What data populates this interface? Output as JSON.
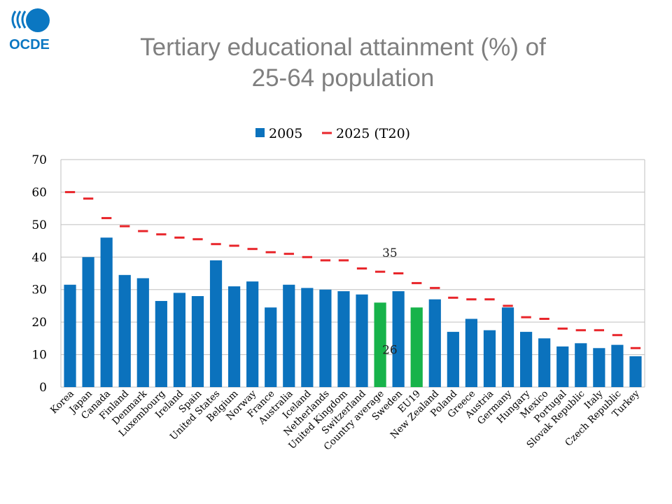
{
  "logo": {
    "text": "OCDE",
    "icon": "oecd-logo-icon",
    "color": "#0b77c2"
  },
  "title": {
    "line1": "Tertiary educational attainment (%) of",
    "line2": "25-64 population"
  },
  "chart_data": {
    "type": "bar",
    "title": "",
    "xlabel": "",
    "ylabel": "",
    "ylim": [
      0,
      70
    ],
    "yticks": [
      0,
      10,
      20,
      30,
      40,
      50,
      60,
      70
    ],
    "grid": true,
    "legend_position": "top",
    "categories": [
      "Korea",
      "Japan",
      "Canada",
      "Finland",
      "Denmark",
      "Luxembourg",
      "Ireland",
      "Spain",
      "United States",
      "Belgium",
      "Norway",
      "France",
      "Australia",
      "Iceland",
      "Netherlands",
      "United Kingdom",
      "Switzerland",
      "Country average",
      "Sweden",
      "EU19",
      "New Zealand",
      "Poland",
      "Greece",
      "Austria",
      "Germany",
      "Hungary",
      "Mexico",
      "Portugal",
      "Slovak Republic",
      "Italy",
      "Czech Republic",
      "Turkey"
    ],
    "series": [
      {
        "name": "2005",
        "mark": "bar",
        "color": "#0b72bd",
        "values": [
          31.5,
          40,
          46,
          34.5,
          33.5,
          26.5,
          29,
          28,
          39,
          31,
          32.5,
          24.5,
          31.5,
          30.5,
          30,
          29.5,
          28.5,
          26,
          29.5,
          24.5,
          27,
          17,
          21,
          17.5,
          24.5,
          17,
          15,
          12.5,
          13.5,
          12,
          13,
          9.5
        ]
      },
      {
        "name": "2025 (T20)",
        "mark": "dash",
        "color": "#e8262b",
        "values": [
          60,
          58,
          52,
          49.5,
          48,
          47,
          46,
          45.5,
          44,
          43.5,
          42.5,
          41.5,
          41,
          40,
          39,
          39,
          36.5,
          35.5,
          35,
          32,
          30.5,
          27.5,
          27,
          27,
          25,
          21.5,
          21,
          18,
          17.5,
          17.5,
          16,
          12
        ]
      }
    ],
    "highlight": {
      "color": "#17b34a",
      "categories": [
        "Country average",
        "EU19"
      ]
    },
    "annotations": [
      {
        "text": "35",
        "category": "Country average",
        "series": "2025 (T20)"
      },
      {
        "text": "26",
        "category": "Country average",
        "series": "2005"
      }
    ]
  }
}
